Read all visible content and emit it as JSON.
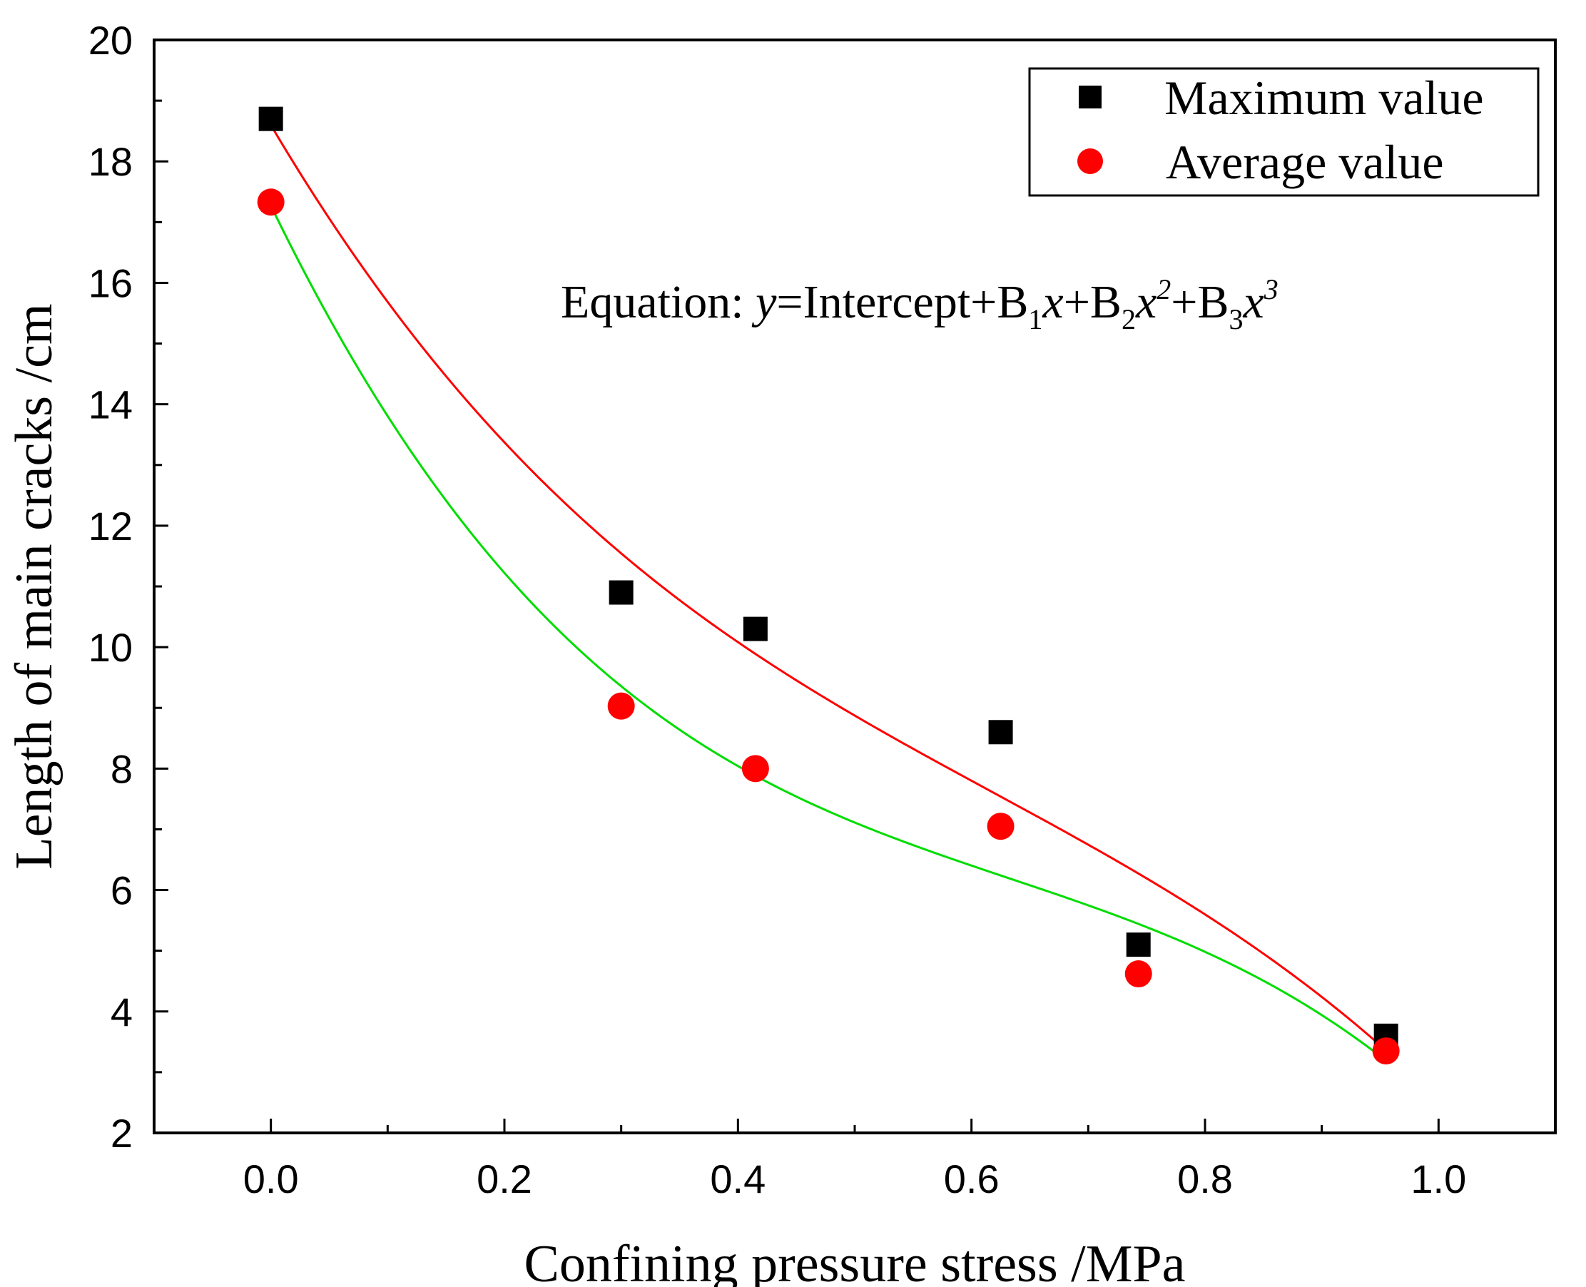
{
  "chart_data": {
    "type": "scatter",
    "xlabel": "Confining pressure stress /MPa",
    "ylabel": "Length of main cracks  /cm",
    "xlim": [
      -0.1,
      1.1
    ],
    "ylim": [
      2,
      20
    ],
    "x_ticks": [
      0.0,
      0.2,
      0.4,
      0.6,
      0.8,
      1.0
    ],
    "x_tick_labels": [
      "0.0",
      "0.2",
      "0.4",
      "0.6",
      "0.8",
      "1.0"
    ],
    "y_ticks": [
      2,
      4,
      6,
      8,
      10,
      12,
      14,
      16,
      18,
      20
    ],
    "y_tick_labels": [
      "2",
      "4",
      "6",
      "8",
      "10",
      "12",
      "14",
      "16",
      "18",
      "20"
    ],
    "grid": false,
    "legend_position": "top-right",
    "series": [
      {
        "name": "Maximum value",
        "marker": "square",
        "color": "#000000",
        "fit_color": "#ff0000",
        "x": [
          0.0,
          0.3,
          0.415,
          0.625,
          0.743,
          0.955
        ],
        "y": [
          18.7,
          10.9,
          10.3,
          8.6,
          5.1,
          3.6
        ]
      },
      {
        "name": "Average value",
        "marker": "circle",
        "color": "#ff0000",
        "fit_color": "#00dd00",
        "x": [
          0.0,
          0.3,
          0.415,
          0.625,
          0.743,
          0.955
        ],
        "y": [
          17.33,
          9.03,
          8.0,
          7.05,
          4.62,
          3.35
        ]
      }
    ],
    "annotation": {
      "prefix": "Equation: ",
      "y": "y",
      "eq": "=Intercept+B",
      "sub1": "1",
      "x1": "x",
      "plus2": "+B",
      "sub2": "2",
      "x2": "x",
      "sup2": "2",
      "plus3": "+B",
      "sub3": "3",
      "x3": "x",
      "sup3": "3"
    }
  }
}
